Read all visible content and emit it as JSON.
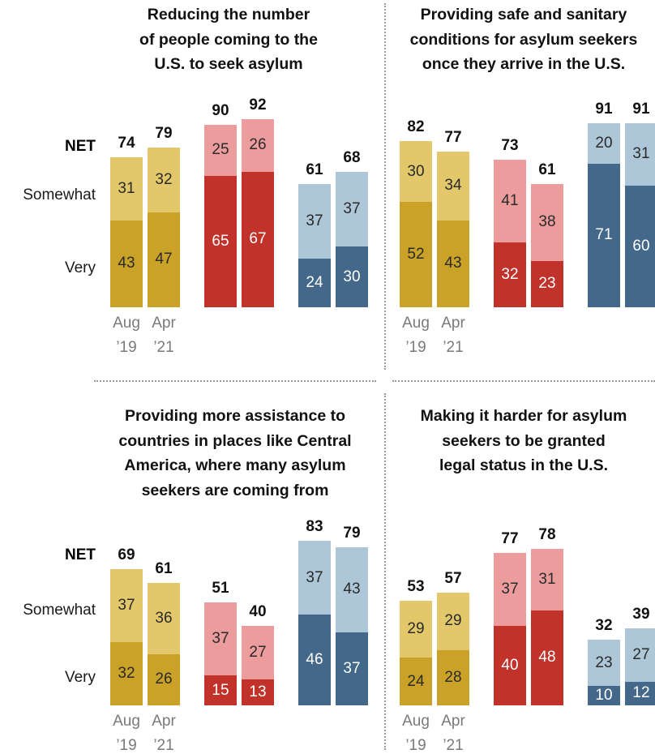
{
  "row_labels": {
    "net": "NET",
    "somewhat": "Somewhat",
    "very": "Very"
  },
  "x_labels": [
    [
      "Aug",
      "’19"
    ],
    [
      "Apr",
      "’21"
    ]
  ],
  "colors": {
    "gold_very": "#c9a227",
    "gold_somewhat": "#e2c76b",
    "red_very": "#c0322a",
    "red_somewhat": "#ec9c9d",
    "blue_very": "#44688a",
    "blue_somewhat": "#adc6d8"
  },
  "chart_data": [
    {
      "type": "bar",
      "title": [
        "Reducing the number",
        "of people coming to the",
        "U.S. to seek asylum"
      ],
      "categories": [
        "Aug ’19",
        "Apr ’21"
      ],
      "groups": [
        {
          "color": "gold",
          "very": [
            43,
            47
          ],
          "somewhat": [
            31,
            32
          ],
          "net": [
            74,
            79
          ]
        },
        {
          "color": "red",
          "very": [
            65,
            67
          ],
          "somewhat": [
            25,
            26
          ],
          "net": [
            90,
            92
          ]
        },
        {
          "color": "blue",
          "very": [
            24,
            30
          ],
          "somewhat": [
            37,
            37
          ],
          "net": [
            61,
            68
          ]
        }
      ]
    },
    {
      "type": "bar",
      "title": [
        "Providing safe and sanitary",
        "conditions for asylum seekers",
        "once they arrive in the U.S."
      ],
      "categories": [
        "Aug ’19",
        "Apr ’21"
      ],
      "groups": [
        {
          "color": "gold",
          "very": [
            52,
            43
          ],
          "somewhat": [
            30,
            34
          ],
          "net": [
            82,
            77
          ]
        },
        {
          "color": "red",
          "very": [
            32,
            23
          ],
          "somewhat": [
            41,
            38
          ],
          "net": [
            73,
            61
          ]
        },
        {
          "color": "blue",
          "very": [
            71,
            60
          ],
          "somewhat": [
            20,
            31
          ],
          "net": [
            91,
            91
          ]
        }
      ]
    },
    {
      "type": "bar",
      "title": [
        "Providing more assistance to",
        "countries in places like Central",
        "America, where many asylum",
        "seekers are coming from"
      ],
      "categories": [
        "Aug ’19",
        "Apr ’21"
      ],
      "groups": [
        {
          "color": "gold",
          "very": [
            32,
            26
          ],
          "somewhat": [
            37,
            36
          ],
          "net": [
            69,
            61
          ]
        },
        {
          "color": "red",
          "very": [
            15,
            13
          ],
          "somewhat": [
            37,
            27
          ],
          "net": [
            51,
            40
          ]
        },
        {
          "color": "blue",
          "very": [
            46,
            37
          ],
          "somewhat": [
            37,
            43
          ],
          "net": [
            83,
            79
          ]
        }
      ]
    },
    {
      "type": "bar",
      "title": [
        "Making it harder for asylum",
        "seekers to be granted",
        "legal status in the U.S."
      ],
      "categories": [
        "Aug ’19",
        "Apr ’21"
      ],
      "groups": [
        {
          "color": "gold",
          "very": [
            24,
            28
          ],
          "somewhat": [
            29,
            29
          ],
          "net": [
            53,
            57
          ]
        },
        {
          "color": "red",
          "very": [
            40,
            48
          ],
          "somewhat": [
            37,
            31
          ],
          "net": [
            77,
            78
          ]
        },
        {
          "color": "blue",
          "very": [
            10,
            12
          ],
          "somewhat": [
            23,
            27
          ],
          "net": [
            32,
            39
          ]
        }
      ]
    }
  ]
}
